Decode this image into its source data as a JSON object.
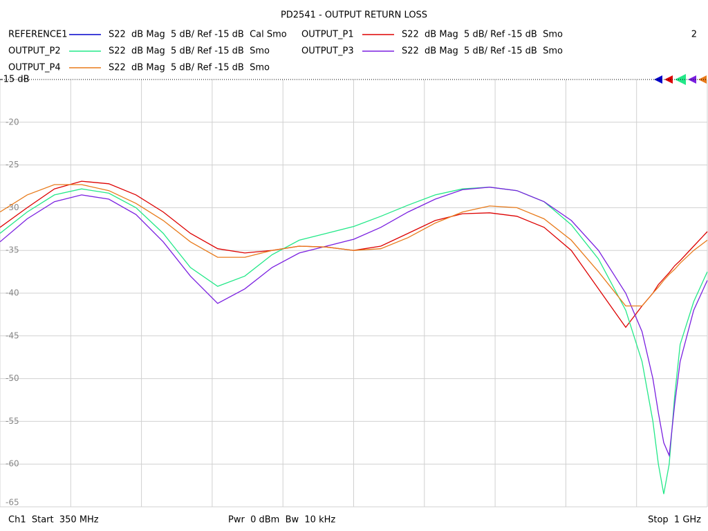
{
  "chart_data": {
    "type": "line",
    "title": "PD2541 - OUTPUT RETURN LOSS",
    "window_label": "2",
    "start_label": "Ch1  Start  350 MHz",
    "center_label": "Pwr  0 dBm  Bw  10 kHz",
    "stop_label": "Stop  1 GHz",
    "x": [
      350,
      375,
      400,
      425,
      450,
      475,
      500,
      525,
      550,
      575,
      600,
      625,
      650,
      675,
      700,
      725,
      750,
      775,
      800,
      825,
      850,
      875,
      900,
      925,
      940,
      950,
      955,
      960,
      965,
      970,
      975,
      987.5,
      1000
    ],
    "xlim": [
      350,
      1000
    ],
    "xticks": [
      350,
      415,
      480,
      545,
      610,
      675,
      740,
      805,
      870,
      935,
      1000
    ],
    "ylim": [
      -65,
      -15
    ],
    "yticks": [
      {
        "value": -15,
        "label": "-15 dB"
      },
      -20,
      -25,
      -30,
      -35,
      -40,
      -45,
      -50,
      -55,
      -60,
      -65
    ],
    "grid": true,
    "series": [
      {
        "name": "REFERENCE1",
        "color": "#0000cc",
        "format": "S22  dB Mag  5 dB/ Ref -15 dB  Cal Smo",
        "values": [
          null,
          null,
          null,
          null,
          null,
          null,
          null,
          null,
          null,
          null,
          null,
          null,
          null,
          null,
          null,
          null,
          null,
          null,
          null,
          null,
          null,
          null,
          null,
          null,
          null,
          null,
          null,
          null,
          null,
          null,
          null,
          null,
          null
        ]
      },
      {
        "name": "OUTPUT_P1",
        "color": "#dd0000",
        "format": "S22  dB Mag  5 dB/ Ref -15 dB  Smo",
        "values": [
          -32.3,
          -30,
          -27.8,
          -26.9,
          -27.2,
          -28.5,
          -30.5,
          -33,
          -34.8,
          -35.3,
          -35,
          -34.5,
          -34.6,
          -35,
          -34.5,
          -33,
          -31.5,
          -30.7,
          -30.6,
          -31,
          -32.3,
          -35,
          -39.5,
          -44,
          -41.5,
          -40,
          -39,
          -38.3,
          -37.6,
          -36.8,
          -36.2,
          -34.5,
          -32.8
        ]
      },
      {
        "name": "OUTPUT_P2",
        "color": "#22e888",
        "format": "S22  dB Mag  5 dB/ Ref -15 dB  Smo",
        "values": [
          -33,
          -30.5,
          -28.5,
          -27.8,
          -28.3,
          -30,
          -33,
          -37,
          -39.2,
          -38,
          -35.5,
          -33.8,
          -33,
          -32.2,
          -31,
          -29.7,
          -28.5,
          -27.8,
          -27.6,
          -28,
          -29.3,
          -32,
          -36,
          -42,
          -48,
          -55,
          -60,
          -63.5,
          -60,
          -52,
          -46,
          -41,
          -37.5
        ]
      },
      {
        "name": "OUTPUT_P3",
        "color": "#7a1fe0",
        "format": "S22  dB Mag  5 dB/ Ref -15 dB  Smo",
        "values": [
          -34,
          -31.3,
          -29.3,
          -28.5,
          -29,
          -30.8,
          -34,
          -38,
          -41.2,
          -39.5,
          -37,
          -35.3,
          -34.5,
          -33.7,
          -32.3,
          -30.5,
          -29,
          -27.9,
          -27.6,
          -28,
          -29.3,
          -31.5,
          -35,
          -40,
          -44.5,
          -50,
          -54,
          -57.5,
          -59,
          -53,
          -48,
          -42,
          -38.5
        ]
      },
      {
        "name": "OUTPUT_P4",
        "color": "#e87a1a",
        "format": "S22  dB Mag  5 dB/ Ref -15 dB  Smo",
        "values": [
          -30.5,
          -28.5,
          -27.3,
          -27.3,
          -28,
          -29.5,
          -31.5,
          -34,
          -35.8,
          -35.8,
          -35,
          -34.5,
          -34.6,
          -35,
          -34.8,
          -33.5,
          -31.8,
          -30.5,
          -29.8,
          -30,
          -31.3,
          -33.8,
          -37.5,
          -41.5,
          -41.5,
          -40,
          -39.3,
          -38.5,
          -37.8,
          -37.2,
          -36.5,
          -35,
          -33.8
        ]
      }
    ]
  }
}
